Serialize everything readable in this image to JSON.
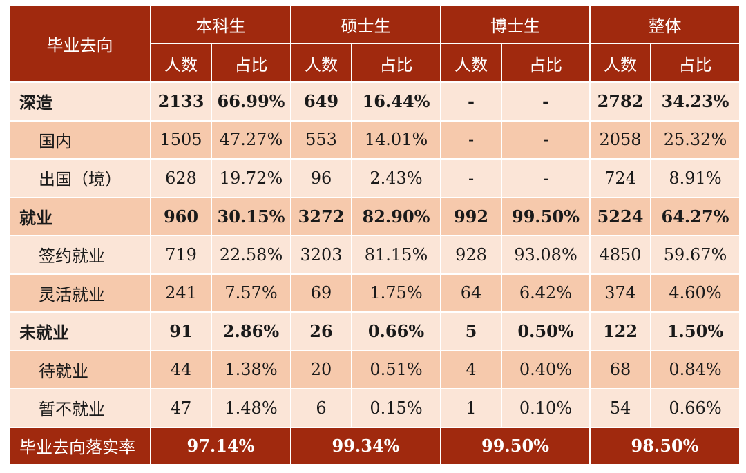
{
  "header": {
    "corner": "毕业去向",
    "groups": [
      "本科生",
      "硕士生",
      "博士生",
      "整体"
    ],
    "sub": [
      "人数",
      "占比"
    ]
  },
  "rows": [
    {
      "label": "深造",
      "kind": "major",
      "tone": "light",
      "cells": [
        "2133",
        "66.99%",
        "649",
        "16.44%",
        "-",
        "-",
        "2782",
        "34.23%"
      ]
    },
    {
      "label": "国内",
      "kind": "sub",
      "tone": "dark",
      "cells": [
        "1505",
        "47.27%",
        "553",
        "14.01%",
        "-",
        "-",
        "2058",
        "25.32%"
      ]
    },
    {
      "label": "出国（境）",
      "kind": "sub",
      "tone": "light",
      "cells": [
        "628",
        "19.72%",
        "96",
        "2.43%",
        "-",
        "-",
        "724",
        "8.91%"
      ]
    },
    {
      "label": "就业",
      "kind": "major",
      "tone": "dark",
      "cells": [
        "960",
        "30.15%",
        "3272",
        "82.90%",
        "992",
        "99.50%",
        "5224",
        "64.27%"
      ]
    },
    {
      "label": "签约就业",
      "kind": "sub",
      "tone": "light",
      "cells": [
        "719",
        "22.58%",
        "3203",
        "81.15%",
        "928",
        "93.08%",
        "4850",
        "59.67%"
      ]
    },
    {
      "label": "灵活就业",
      "kind": "sub",
      "tone": "dark",
      "cells": [
        "241",
        "7.57%",
        "69",
        "1.75%",
        "64",
        "6.42%",
        "374",
        "4.60%"
      ]
    },
    {
      "label": "未就业",
      "kind": "major",
      "tone": "light",
      "cells": [
        "91",
        "2.86%",
        "26",
        "0.66%",
        "5",
        "0.50%",
        "122",
        "1.50%"
      ]
    },
    {
      "label": "待就业",
      "kind": "sub",
      "tone": "dark",
      "cells": [
        "44",
        "1.38%",
        "20",
        "0.51%",
        "4",
        "0.40%",
        "68",
        "0.84%"
      ]
    },
    {
      "label": "暂不就业",
      "kind": "sub",
      "tone": "light",
      "cells": [
        "47",
        "1.48%",
        "6",
        "0.15%",
        "1",
        "0.10%",
        "54",
        "0.66%"
      ]
    }
  ],
  "footer": {
    "label": "毕业去向落实率",
    "values": [
      "97.14%",
      "99.34%",
      "99.50%",
      "98.50%"
    ]
  },
  "colors": {
    "header": "#a0290e",
    "row_light": "#fbe5d7",
    "row_dark": "#f6c9ac"
  }
}
